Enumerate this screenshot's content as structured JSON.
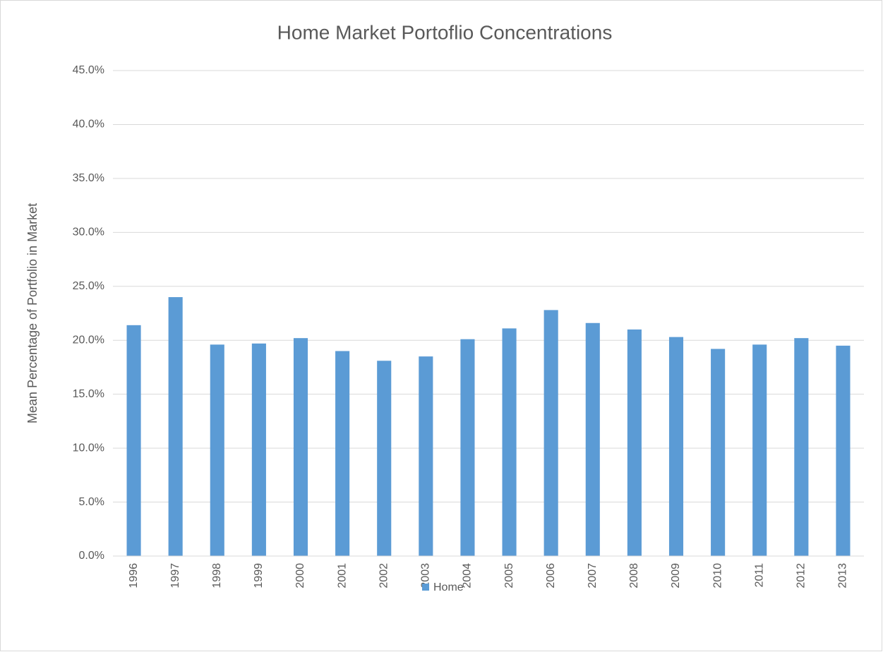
{
  "chart_data": {
    "type": "bar",
    "title": "Home Market Portoflio Concentrations",
    "y_label": "Mean Percentage of Portfolio in Market",
    "categories": [
      "1996",
      "1997",
      "1998",
      "1999",
      "2000",
      "2001",
      "2002",
      "2003",
      "2004",
      "2005",
      "2006",
      "2007",
      "2008",
      "2009",
      "2010",
      "2011",
      "2012",
      "2013"
    ],
    "series": [
      {
        "name": "Home",
        "color": "#5b9bd5",
        "values": [
          21.4,
          24.0,
          19.6,
          19.7,
          20.2,
          19.0,
          18.1,
          18.5,
          20.1,
          21.1,
          22.8,
          21.6,
          21.0,
          20.3,
          19.2,
          19.6,
          20.2,
          19.5
        ]
      }
    ],
    "ylim": [
      0,
      45
    ],
    "yticks": [
      {
        "value": 0,
        "label": "0.0%"
      },
      {
        "value": 5,
        "label": "5.0%"
      },
      {
        "value": 10,
        "label": "10.0%"
      },
      {
        "value": 15,
        "label": "15.0%"
      },
      {
        "value": 20,
        "label": "20.0%"
      },
      {
        "value": 25,
        "label": "25.0%"
      },
      {
        "value": 30,
        "label": "30.0%"
      },
      {
        "value": 35,
        "label": "35.0%"
      },
      {
        "value": 40,
        "label": "40.0%"
      },
      {
        "value": 45,
        "label": "45.0%"
      }
    ],
    "grid": true,
    "legend": "bottom"
  }
}
